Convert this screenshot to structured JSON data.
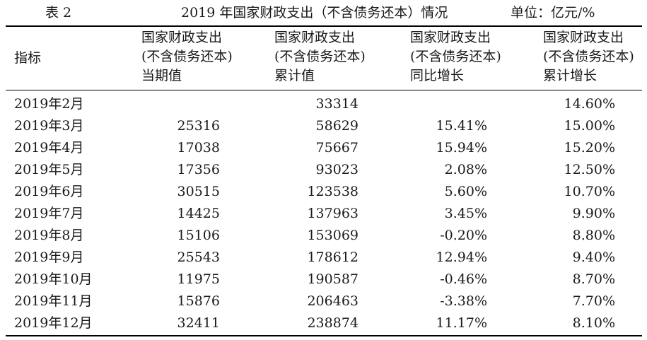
{
  "caption": {
    "label": "表 2",
    "title": "2019 年国家财政支出（不含债务还本）情况",
    "unit": "单位：亿元/%"
  },
  "header": {
    "indicator": "指标",
    "columns": [
      [
        "国家财政支出",
        "(不含债务还本)",
        "当期值"
      ],
      [
        "国家财政支出",
        "(不含债务还本)",
        "累计值"
      ],
      [
        "国家财政支出",
        "(不含债务还本)",
        "同比增长"
      ],
      [
        "国家财政支出",
        "(不含债务还本)",
        "累计增长"
      ]
    ]
  },
  "rows": [
    [
      "2019年2月",
      "",
      "33314",
      "",
      "14.60%"
    ],
    [
      "2019年3月",
      "25316",
      "58629",
      "15.41%",
      "15.00%"
    ],
    [
      "2019年4月",
      "17038",
      "75667",
      "15.94%",
      "15.20%"
    ],
    [
      "2019年5月",
      "17356",
      "93023",
      "2.08%",
      "12.50%"
    ],
    [
      "2019年6月",
      "30515",
      "123538",
      "5.60%",
      "10.70%"
    ],
    [
      "2019年7月",
      "14425",
      "137963",
      "3.45%",
      "9.90%"
    ],
    [
      "2019年8月",
      "15106",
      "153069",
      "-0.20%",
      "8.80%"
    ],
    [
      "2019年9月",
      "25543",
      "178612",
      "12.94%",
      "9.40%"
    ],
    [
      "2019年10月",
      "11975",
      "190587",
      "-0.46%",
      "8.70%"
    ],
    [
      "2019年11月",
      "15876",
      "206463",
      "-3.38%",
      "7.70%"
    ],
    [
      "2019年12月",
      "32411",
      "238874",
      "11.17%",
      "8.10%"
    ]
  ]
}
